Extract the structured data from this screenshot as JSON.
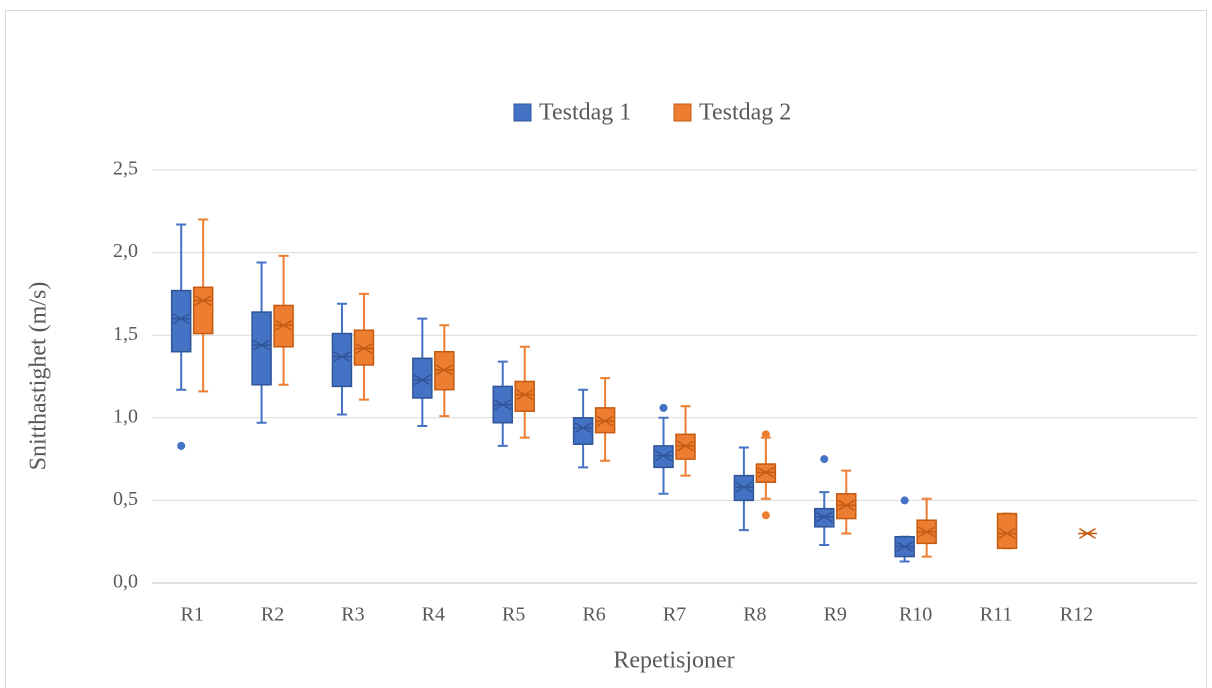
{
  "chart_data": {
    "type": "box",
    "y_label": "Snitthastighet (m/s)",
    "x_label": "Repetisjoner",
    "categories": [
      "R1",
      "R2",
      "R3",
      "R4",
      "R5",
      "R6",
      "R7",
      "R8",
      "R9",
      "R10",
      "R11",
      "R12",
      null
    ],
    "ylim": [
      0,
      2.5
    ],
    "yticks": [
      {
        "value": 0,
        "label": "0,0"
      },
      {
        "value": 0.5,
        "label": "0,5"
      },
      {
        "value": 1,
        "label": "1,0"
      },
      {
        "value": 1.5,
        "label": "1,5"
      },
      {
        "value": 2,
        "label": "2,0"
      },
      {
        "value": 2.5,
        "label": "2,5"
      }
    ],
    "grid": true,
    "legend": "top",
    "series": [
      {
        "name": "Testdag 1",
        "color": "#4472c4",
        "edge": "#2f5597",
        "min": [
          1.17,
          0.97,
          1.02,
          0.95,
          0.83,
          0.7,
          0.54,
          0.32,
          0.23,
          0.13,
          null,
          null,
          null
        ],
        "q1": [
          1.4,
          1.2,
          1.19,
          1.12,
          0.97,
          0.84,
          0.7,
          0.5,
          0.34,
          0.16,
          null,
          null,
          null
        ],
        "median": [
          1.6,
          1.44,
          1.37,
          1.23,
          1.08,
          0.94,
          0.77,
          0.58,
          0.4,
          0.22,
          null,
          null,
          null
        ],
        "q3": [
          1.77,
          1.64,
          1.51,
          1.36,
          1.19,
          1.0,
          0.83,
          0.65,
          0.45,
          0.28,
          null,
          null,
          null
        ],
        "max": [
          2.17,
          1.94,
          1.69,
          1.6,
          1.34,
          1.17,
          1.0,
          0.82,
          0.55,
          0.28,
          null,
          null,
          null
        ],
        "mean": [
          1.6,
          1.44,
          1.37,
          1.23,
          1.08,
          0.94,
          0.77,
          0.58,
          0.4,
          0.22,
          null,
          null,
          null
        ],
        "outliers": [
          [
            0.83
          ],
          [],
          [],
          [],
          [],
          [],
          [
            1.06
          ],
          [],
          [
            0.75
          ],
          [
            0.5
          ],
          [],
          [],
          []
        ]
      },
      {
        "name": "Testdag 2",
        "color": "#ed7d31",
        "edge": "#c55a11",
        "min": [
          1.16,
          1.2,
          1.11,
          1.01,
          0.88,
          0.74,
          0.65,
          0.51,
          0.3,
          0.16,
          0.21,
          0.3,
          null
        ],
        "q1": [
          1.51,
          1.43,
          1.32,
          1.17,
          1.04,
          0.91,
          0.75,
          0.61,
          0.39,
          0.24,
          0.21,
          0.3,
          null
        ],
        "median": [
          1.71,
          1.56,
          1.42,
          1.29,
          1.14,
          0.98,
          0.83,
          0.67,
          0.47,
          0.31,
          0.3,
          0.3,
          null
        ],
        "q3": [
          1.79,
          1.68,
          1.53,
          1.4,
          1.22,
          1.06,
          0.9,
          0.72,
          0.54,
          0.38,
          0.42,
          0.3,
          null
        ],
        "max": [
          2.2,
          1.98,
          1.75,
          1.56,
          1.43,
          1.24,
          1.07,
          0.88,
          0.68,
          0.51,
          0.42,
          0.3,
          null
        ],
        "mean": [
          1.71,
          1.56,
          1.42,
          1.29,
          1.14,
          0.98,
          0.83,
          0.67,
          0.47,
          0.31,
          0.3,
          0.3,
          null
        ],
        "outliers": [
          [],
          [],
          [],
          [],
          [],
          [],
          [],
          [
            0.9,
            0.41
          ],
          [],
          [],
          [],
          [],
          []
        ]
      }
    ]
  }
}
